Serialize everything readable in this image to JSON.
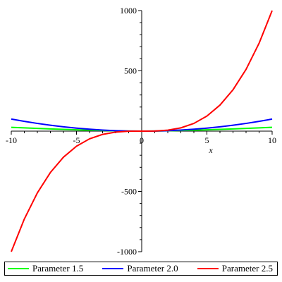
{
  "chart_data": {
    "type": "line",
    "title": "",
    "xlabel": "x",
    "ylabel": "",
    "xlim": [
      -10,
      10
    ],
    "ylim": [
      -1000,
      1000
    ],
    "grid": false,
    "legend_position": "bottom",
    "x_ticks": [
      -10,
      -5,
      0,
      5,
      10
    ],
    "x_tick_labels": [
      "-10",
      "-5",
      "0",
      "5",
      "10"
    ],
    "y_ticks": [
      -1000,
      -500,
      500,
      1000
    ],
    "y_tick_labels": [
      "-1000",
      "-500",
      "500",
      "1000"
    ],
    "x": [
      -10,
      -9,
      -8,
      -7,
      -6,
      -5,
      -4,
      -3,
      -2,
      -1,
      0,
      1,
      2,
      3,
      4,
      5,
      6,
      7,
      8,
      9,
      10
    ],
    "series": [
      {
        "name": "Parameter 1.5",
        "color": "#00ff00",
        "values": [
          31.6,
          27.0,
          22.6,
          18.5,
          14.7,
          11.2,
          8.0,
          5.2,
          2.8,
          1.0,
          0,
          1.0,
          2.8,
          5.2,
          8.0,
          11.2,
          14.7,
          18.5,
          22.6,
          27.0,
          31.6
        ]
      },
      {
        "name": "Parameter 2.0",
        "color": "#0000ff",
        "values": [
          100,
          81,
          64,
          49,
          36,
          25,
          16,
          9,
          4,
          1,
          0,
          1,
          4,
          9,
          16,
          25,
          36,
          49,
          64,
          81,
          100
        ]
      },
      {
        "name": "Parameter 2.5",
        "color": "#ff0000",
        "values": [
          -1000,
          -729,
          -512,
          -343,
          -216,
          -125,
          -64,
          -27,
          -8,
          -1,
          0,
          1,
          8,
          27,
          64,
          125,
          216,
          343,
          512,
          729,
          1000
        ]
      }
    ]
  }
}
